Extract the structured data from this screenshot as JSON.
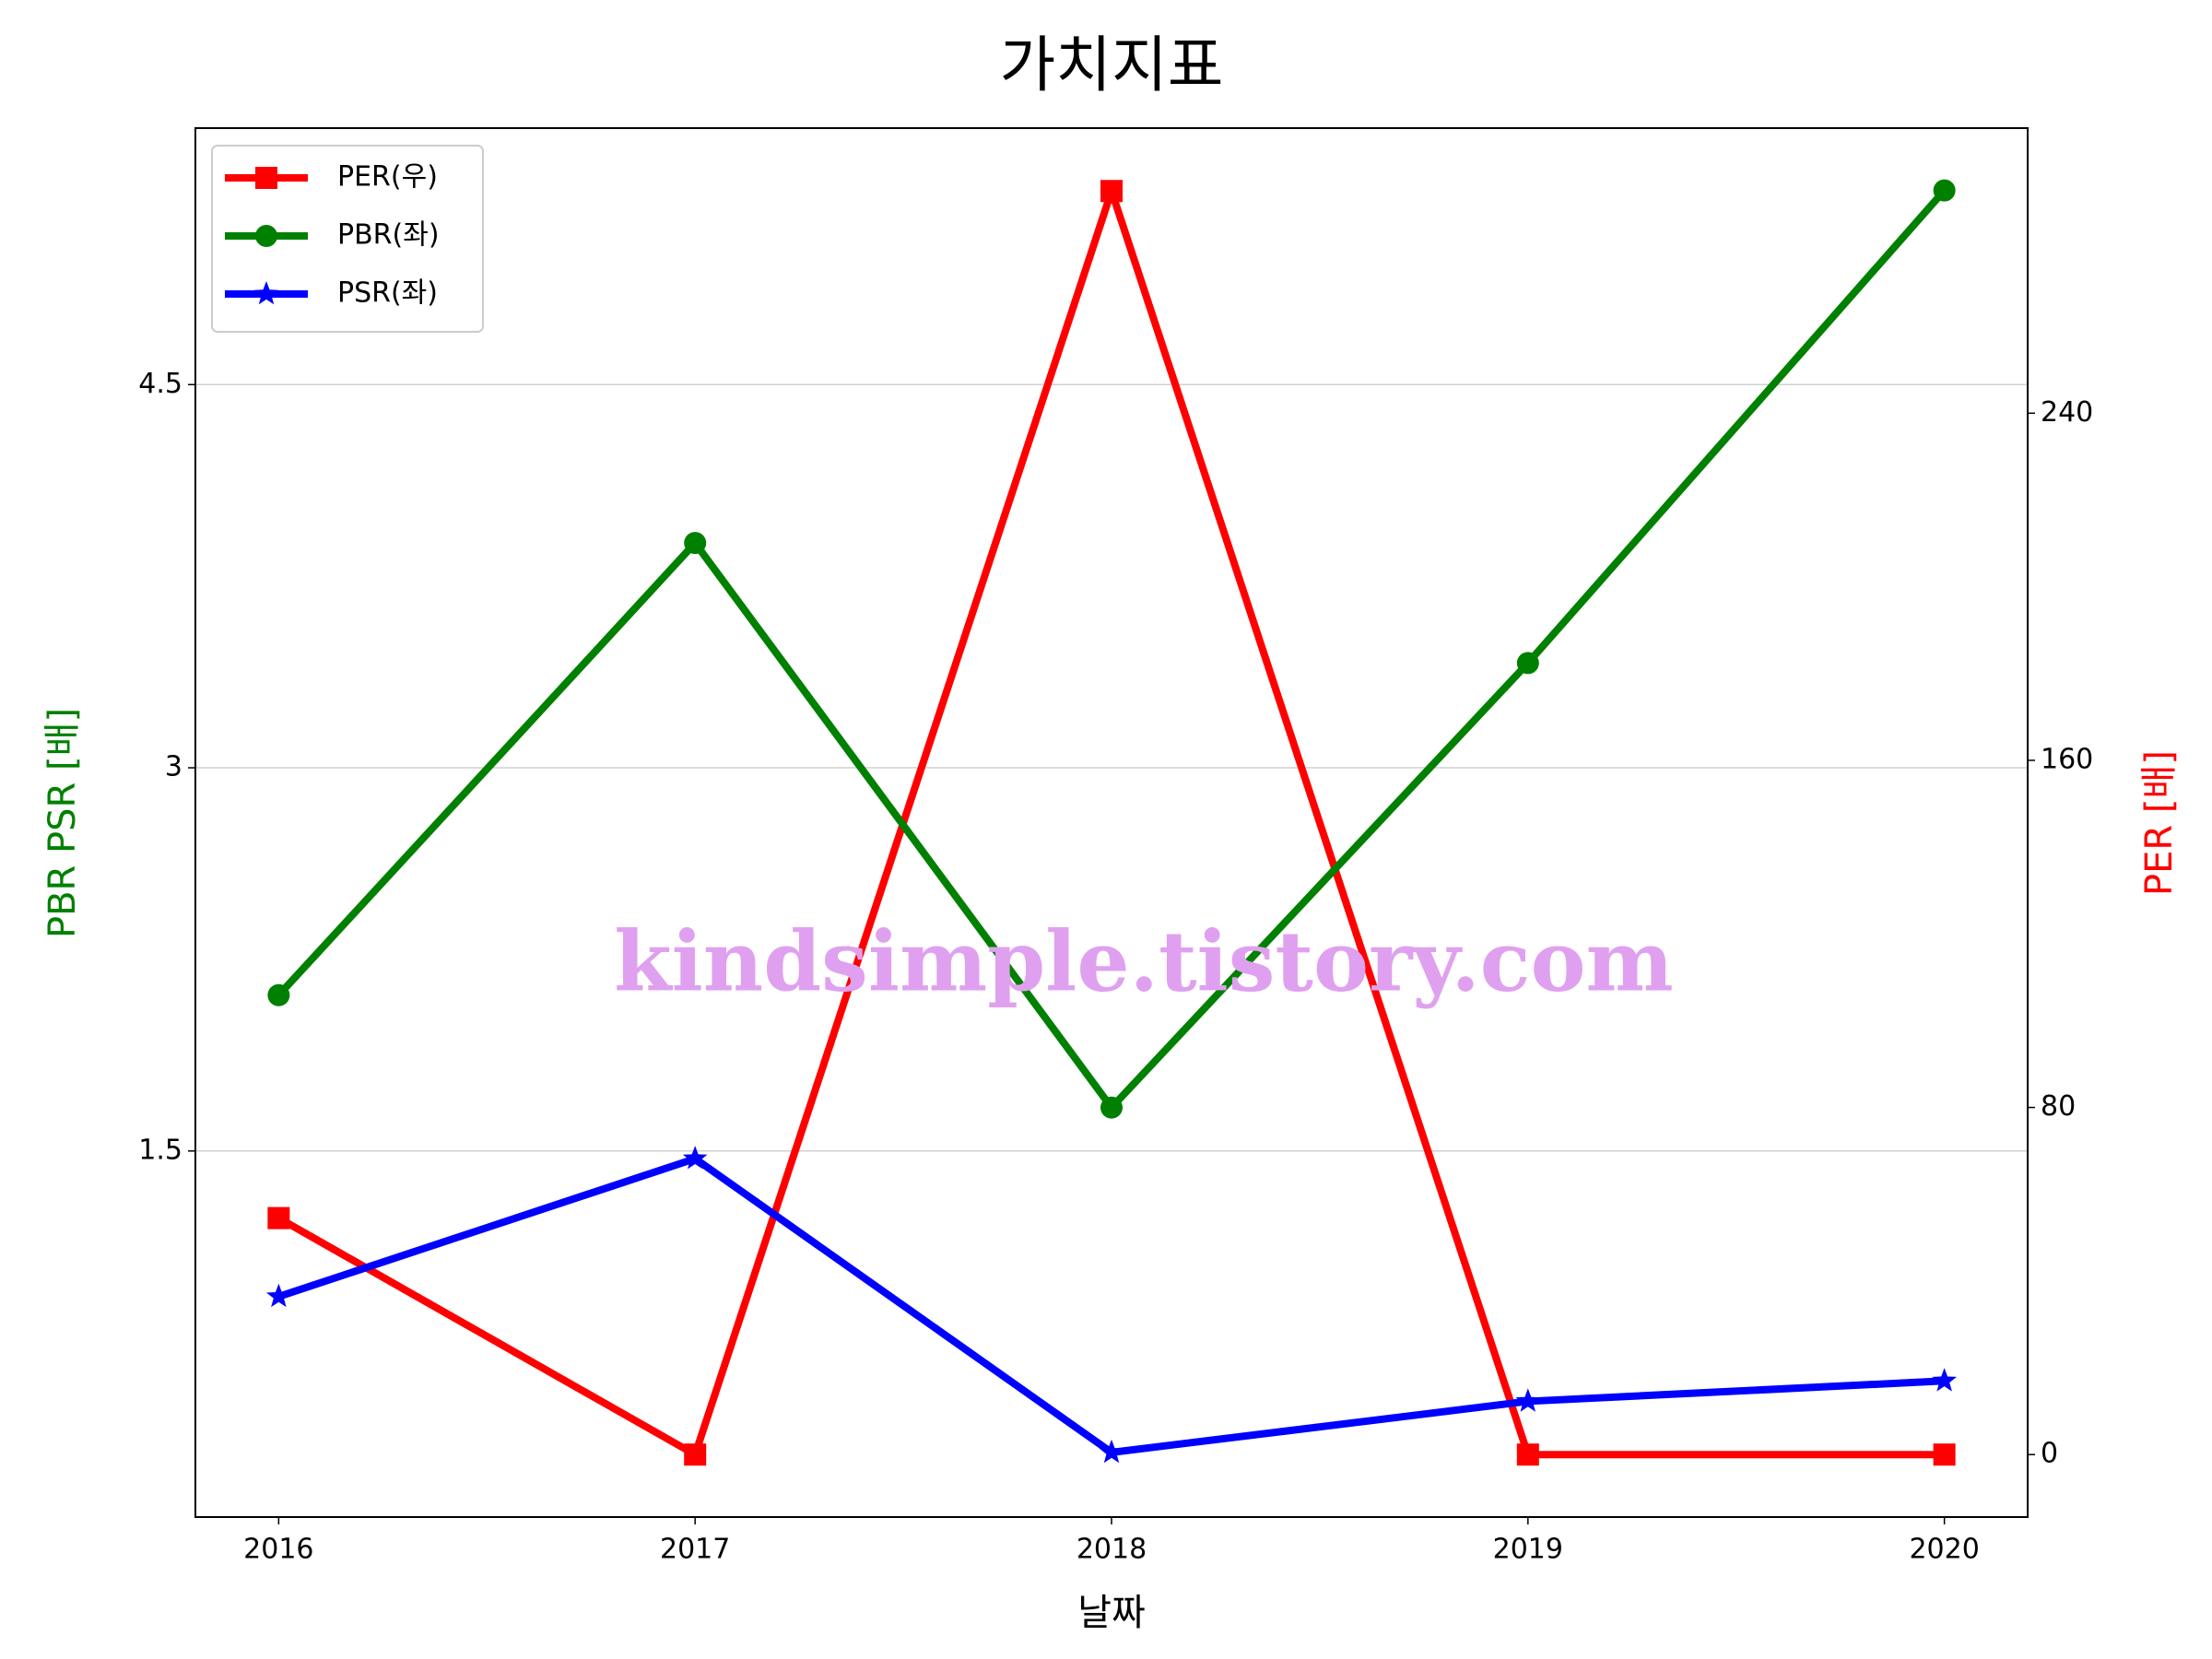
{
  "chart_data": {
    "type": "line",
    "title": "가치지표",
    "xlabel": "날짜",
    "ylabel": "PBR PSR [배]",
    "y2label": "PER [배]",
    "watermark": "kindsimple.tistory.com",
    "x": [
      2016,
      2017,
      2018,
      2019,
      2020
    ],
    "xlim": [
      2015.8,
      2020.2
    ],
    "xticks": [
      2016,
      2017,
      2018,
      2019,
      2020
    ],
    "ylim": [
      0.067,
      5.504
    ],
    "yticks": [
      1.5,
      3.0,
      4.5
    ],
    "y2lim": [
      -14.4,
      305.7
    ],
    "y2ticks": [
      0,
      80,
      160,
      240
    ],
    "grid": true,
    "legend": "upper left",
    "series": [
      {
        "name": "PER(우)",
        "color": "#ff0000",
        "marker": "square",
        "axis": "y2",
        "values": [
          54.5,
          0,
          291.2,
          0,
          0
        ]
      },
      {
        "name": "PBR(좌)",
        "color": "#008000",
        "marker": "circle",
        "values": [
          2.11,
          3.88,
          1.67,
          3.41,
          5.26
        ]
      },
      {
        "name": "PSR(좌)",
        "color": "#0000ff",
        "marker": "star",
        "values": [
          0.93,
          1.47,
          0.32,
          0.52,
          0.6
        ]
      }
    ]
  }
}
